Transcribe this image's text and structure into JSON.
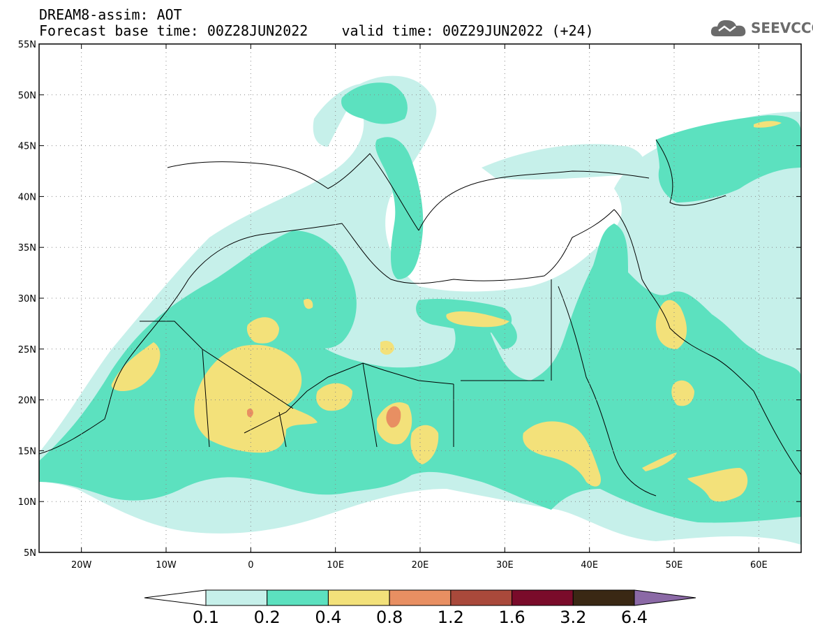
{
  "header": {
    "title_line1": "DREAM8-assim: AOT",
    "title_line2": "Forecast base time: 00Z28JUN2022    valid time: 00Z29JUN2022 (+24)"
  },
  "logo": {
    "text": "SEEVCCC",
    "icon": "cloud-icon"
  },
  "map": {
    "region": {
      "lon_min": -25,
      "lon_max": 65,
      "lat_min": 5,
      "lat_max": 55
    },
    "lat_ticks": [
      {
        "lat": 55,
        "label": "55N"
      },
      {
        "lat": 50,
        "label": "50N"
      },
      {
        "lat": 45,
        "label": "45N"
      },
      {
        "lat": 40,
        "label": "40N"
      },
      {
        "lat": 35,
        "label": "35N"
      },
      {
        "lat": 30,
        "label": "30N"
      },
      {
        "lat": 25,
        "label": "25N"
      },
      {
        "lat": 20,
        "label": "20N"
      },
      {
        "lat": 15,
        "label": "15N"
      },
      {
        "lat": 10,
        "label": "10N"
      },
      {
        "lat": 5,
        "label": "5N"
      }
    ],
    "lon_ticks": [
      {
        "lon": -20,
        "label": "20W"
      },
      {
        "lon": -10,
        "label": "10W"
      },
      {
        "lon": 0,
        "label": "0"
      },
      {
        "lon": 10,
        "label": "10E"
      },
      {
        "lon": 20,
        "label": "20E"
      },
      {
        "lon": 30,
        "label": "30E"
      },
      {
        "lon": 40,
        "label": "40E"
      },
      {
        "lon": 50,
        "label": "50E"
      },
      {
        "lon": 60,
        "label": "60E"
      }
    ]
  },
  "colorbar": {
    "levels": [
      "0.1",
      "0.2",
      "0.4",
      "0.8",
      "1.2",
      "1.6",
      "3.2",
      "6.4"
    ],
    "colors": [
      "#ffffff",
      "#c6f0ea",
      "#5ce1bf",
      "#f3e17a",
      "#e88f62",
      "#a9493b",
      "#7a0b2a",
      "#3a2814",
      "#8b69a6"
    ]
  }
}
